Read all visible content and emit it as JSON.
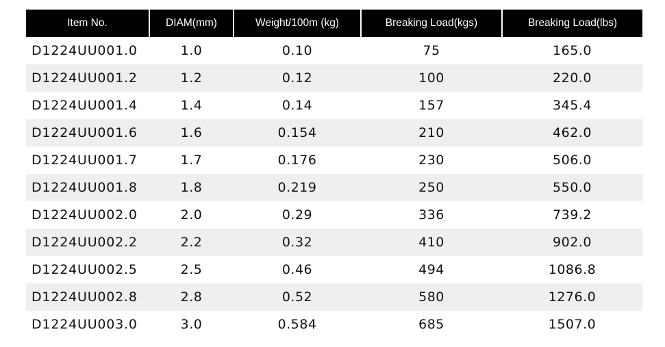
{
  "table": {
    "headers": [
      "Item No.",
      "DIAM(mm)",
      "Weight/100m (kg)",
      "Breaking Load(kgs)",
      "Breaking Load(lbs)"
    ],
    "rows": [
      [
        "D1224UU001.0",
        "1.0",
        "0.10",
        "75",
        "165.0"
      ],
      [
        "D1224UU001.2",
        "1.2",
        "0.12",
        "100",
        "220.0"
      ],
      [
        "D1224UU001.4",
        "1.4",
        "0.14",
        "157",
        "345.4"
      ],
      [
        "D1224UU001.6",
        "1.6",
        "0.154",
        "210",
        "462.0"
      ],
      [
        "D1224UU001.7",
        "1.7",
        "0.176",
        "230",
        "506.0"
      ],
      [
        "D1224UU001.8",
        "1.8",
        "0.219",
        "250",
        "550.0"
      ],
      [
        "D1224UU002.0",
        "2.0",
        "0.29",
        "336",
        "739.2"
      ],
      [
        "D1224UU002.2",
        "2.2",
        "0.32",
        "410",
        "902.0"
      ],
      [
        "D1224UU002.5",
        "2.5",
        "0.46",
        "494",
        "1086.8"
      ],
      [
        "D1224UU002.8",
        "2.8",
        "0.52",
        "580",
        "1276.0"
      ],
      [
        "D1224UU003.0",
        "3.0",
        "0.584",
        "685",
        "1507.0"
      ]
    ]
  }
}
